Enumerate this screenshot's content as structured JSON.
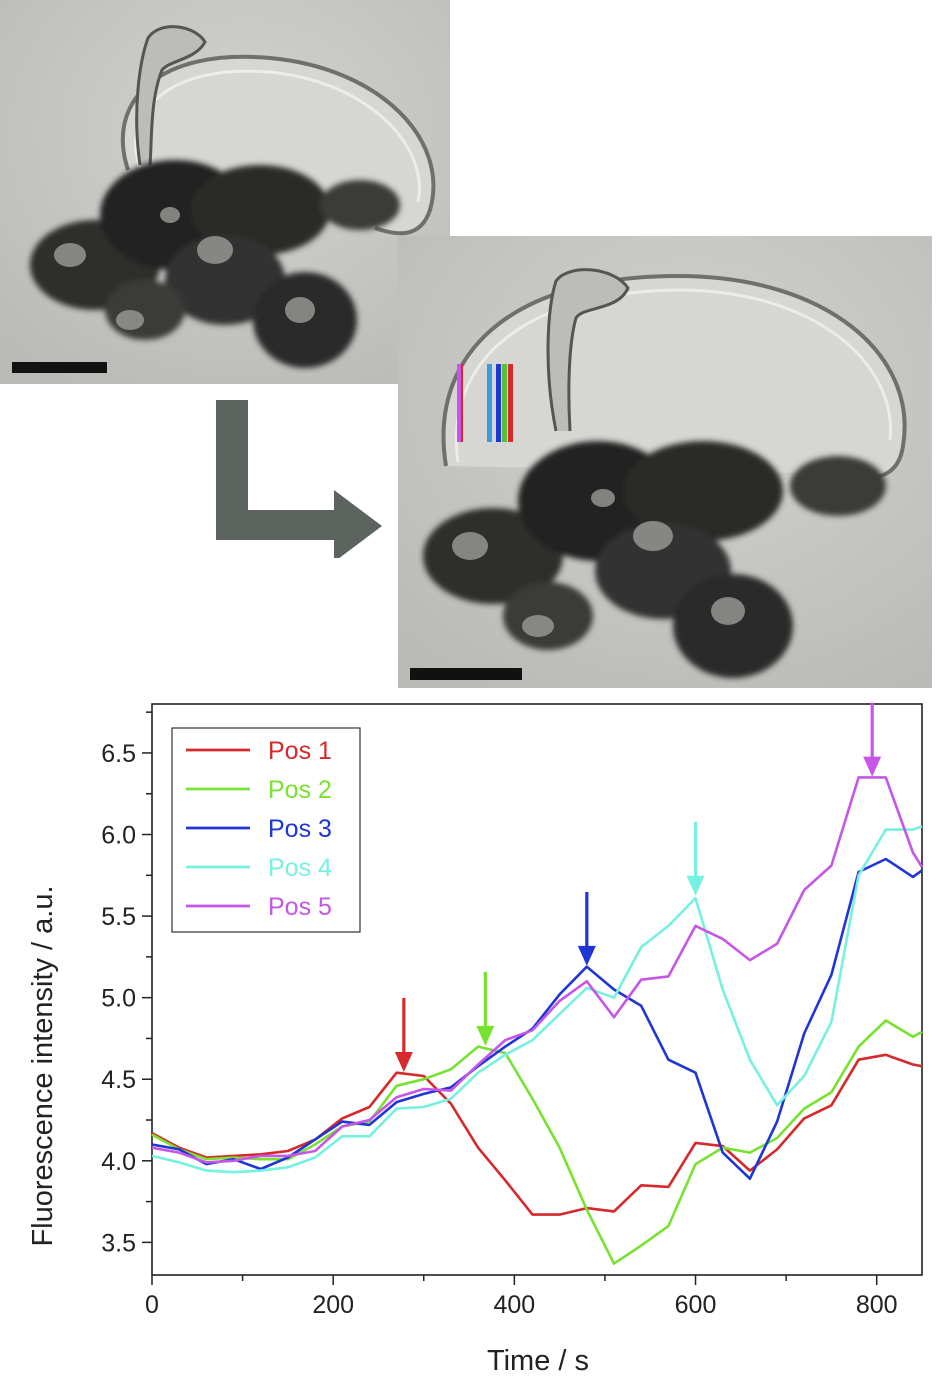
{
  "chart_data": {
    "type": "line",
    "xlabel": "Time / s",
    "ylabel": "Fluorescence intensity / a.u.",
    "xlim": [
      0,
      850
    ],
    "ylim": [
      3.3,
      6.8
    ],
    "xticks": [
      0,
      200,
      400,
      600,
      800
    ],
    "yticks": [
      3.5,
      4.0,
      4.5,
      5.0,
      5.5,
      6.0,
      6.5
    ],
    "legend_position": "top-left",
    "grid": false,
    "x": [
      0,
      30,
      60,
      90,
      120,
      150,
      180,
      210,
      240,
      270,
      300,
      330,
      360,
      390,
      420,
      450,
      480,
      510,
      540,
      570,
      600,
      630,
      660,
      690,
      720,
      750,
      780,
      810,
      840,
      850
    ],
    "series": [
      {
        "name": "Pos 1",
        "color": "#d6292b",
        "values": [
          4.17,
          4.08,
          4.02,
          4.03,
          4.04,
          4.06,
          4.13,
          4.26,
          4.33,
          4.54,
          4.52,
          4.35,
          4.08,
          3.88,
          3.67,
          3.67,
          3.71,
          3.69,
          3.85,
          3.84,
          4.11,
          4.09,
          3.94,
          4.07,
          4.26,
          4.34,
          4.62,
          4.65,
          4.59,
          4.58
        ],
        "arrow_x": 278,
        "arrow_y": 4.52
      },
      {
        "name": "Pos 2",
        "color": "#77e22f",
        "values": [
          4.16,
          4.07,
          4.01,
          4.02,
          4.01,
          4.01,
          4.1,
          4.21,
          4.24,
          4.46,
          4.5,
          4.56,
          4.7,
          4.66,
          4.38,
          4.08,
          3.7,
          3.37,
          3.48,
          3.6,
          3.98,
          4.08,
          4.05,
          4.14,
          4.32,
          4.42,
          4.7,
          4.86,
          4.76,
          4.79
        ],
        "arrow_x": 368,
        "arrow_y": 4.68
      },
      {
        "name": "Pos 3",
        "color": "#1f35d6",
        "values": [
          4.1,
          4.07,
          3.98,
          4.01,
          3.95,
          4.02,
          4.13,
          4.24,
          4.22,
          4.36,
          4.41,
          4.45,
          4.58,
          4.7,
          4.81,
          5.02,
          5.19,
          5.05,
          4.95,
          4.62,
          4.54,
          4.05,
          3.89,
          4.24,
          4.78,
          5.14,
          5.77,
          5.85,
          5.74,
          5.78
        ],
        "arrow_x": 480,
        "arrow_y": 5.17
      },
      {
        "name": "Pos 4",
        "color": "#76f0e0",
        "values": [
          4.03,
          3.99,
          3.94,
          3.93,
          3.94,
          3.96,
          4.02,
          4.15,
          4.15,
          4.32,
          4.33,
          4.38,
          4.54,
          4.65,
          4.74,
          4.9,
          5.06,
          5.0,
          5.31,
          5.44,
          5.61,
          5.05,
          4.62,
          4.34,
          4.52,
          4.85,
          5.75,
          6.03,
          6.03,
          6.05
        ],
        "arrow_x": 600,
        "arrow_y": 5.6
      },
      {
        "name": "Pos 5",
        "color": "#c656e8",
        "values": [
          4.08,
          4.05,
          3.99,
          4.0,
          4.03,
          4.03,
          4.06,
          4.21,
          4.25,
          4.39,
          4.44,
          4.43,
          4.59,
          4.74,
          4.8,
          4.98,
          5.1,
          4.88,
          5.11,
          5.13,
          5.44,
          5.36,
          5.23,
          5.33,
          5.66,
          5.81,
          6.35,
          6.35,
          5.89,
          5.8
        ],
        "arrow_x": 795,
        "arrow_y": 6.33
      }
    ]
  }
}
